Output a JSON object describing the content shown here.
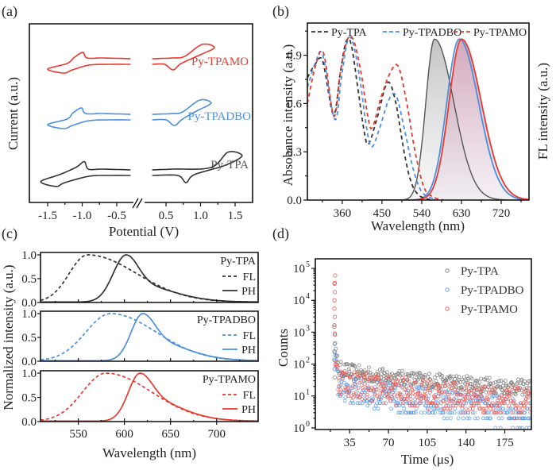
{
  "chart_data": [
    {
      "id": "a",
      "panel_label": "(a)",
      "type": "line",
      "title": "",
      "xlabel": "Potential (V)",
      "ylabel": "Current (a.u.)",
      "xlim": [
        -1.75,
        1.75
      ],
      "x_break": [
        -0.25,
        0.25
      ],
      "xticks": [
        -1.5,
        -1.0,
        -0.5,
        0.5,
        1.0,
        1.5
      ],
      "xtick_labels": [
        "-1.5",
        "-1.0",
        "-0.5",
        "0.5",
        "1.0",
        "1.5"
      ],
      "yticks": [],
      "grid": false,
      "series": [
        {
          "name": "Py-TPAMO",
          "color": "#e8392e",
          "offset": 2,
          "reduction": {
            "start": -1.5,
            "peak_c": -1.27,
            "peak_a": -0.99
          },
          "oxidation": {
            "peak_a": 1.02,
            "vertex": 1.2,
            "peak_c": 0.6
          }
        },
        {
          "name": "Py-TPADBO",
          "color": "#4a8fe0",
          "offset": 1,
          "reduction": {
            "start": -1.5,
            "peak_c": -1.27,
            "peak_a": -1.01
          },
          "oxidation": {
            "peak_a": 0.99,
            "vertex": 1.15,
            "peak_c": 0.62
          }
        },
        {
          "name": "Py-TPA",
          "color": "#333333",
          "offset": 0,
          "reduction": {
            "start": -1.6,
            "peak_c": -1.38,
            "peak_a": -0.97
          },
          "oxidation": {
            "peak_a": 1.4,
            "vertex": 1.6,
            "peak_c": 0.79
          }
        }
      ]
    },
    {
      "id": "b",
      "panel_label": "(b)",
      "type": "line",
      "title": "",
      "xlabel": "Wavelength (nm)",
      "ylabel": "Absobance intensity (a.u.)",
      "ylabel_right": "FL intensity (a.u.)",
      "xlim": [
        281,
        783
      ],
      "ylim": [
        0,
        1.1
      ],
      "xticks": [
        360,
        450,
        540,
        630,
        720
      ],
      "yticks": [
        0.0,
        0.3,
        0.6,
        0.9
      ],
      "ytick_labels": [
        "0.0",
        "0.3",
        "0.6",
        "0.9"
      ],
      "legend": "top",
      "grid": false,
      "absorbance": [
        {
          "name": "Py-TPA",
          "color": "#333333",
          "x": [
            281,
            300,
            316,
            340,
            355,
            368,
            380,
            395,
            410,
            420,
            440,
            462,
            480,
            500,
            515,
            530,
            548,
            570
          ],
          "y": [
            0.76,
            0.85,
            0.86,
            0.53,
            0.78,
            0.98,
            0.97,
            0.7,
            0.42,
            0.35,
            0.52,
            0.73,
            0.62,
            0.3,
            0.12,
            0.04,
            0.01,
            0.0
          ]
        },
        {
          "name": "Py-TPADBO",
          "color": "#4a8fe0",
          "x": [
            281,
            300,
            316,
            343,
            358,
            372,
            384,
            400,
            415,
            427,
            445,
            465,
            482,
            500,
            520,
            538,
            556,
            575
          ],
          "y": [
            0.7,
            0.86,
            0.9,
            0.5,
            0.76,
            0.99,
            0.98,
            0.75,
            0.45,
            0.33,
            0.45,
            0.62,
            0.65,
            0.45,
            0.2,
            0.06,
            0.02,
            0.0
          ]
        },
        {
          "name": "Py-TPAMO",
          "color": "#e8392e",
          "x": [
            281,
            300,
            318,
            341,
            356,
            372,
            386,
            402,
            418,
            428,
            448,
            470,
            487,
            505,
            525,
            545,
            565,
            590
          ],
          "y": [
            0.6,
            0.84,
            0.91,
            0.52,
            0.8,
            1.0,
            0.99,
            0.8,
            0.52,
            0.45,
            0.64,
            0.8,
            0.83,
            0.62,
            0.3,
            0.08,
            0.02,
            0.0
          ]
        }
      ],
      "fluorescence": [
        {
          "name": "Py-TPA",
          "color": "#555555",
          "fill": "#c9c9c9",
          "peak_nm": 569,
          "width_left": 28,
          "width_right": 62,
          "start_nm": 490
        },
        {
          "name": "Py-TPADBO",
          "color": "#4a8fe0",
          "fill": "#c9a9b9",
          "peak_nm": 625,
          "width_left": 40,
          "width_right": 62,
          "start_nm": 430
        },
        {
          "name": "Py-TPAMO",
          "color": "#e8392e",
          "fill": "#c9a9b9",
          "peak_nm": 630,
          "width_left": 40,
          "width_right": 64,
          "start_nm": 430
        }
      ]
    },
    {
      "id": "c",
      "panel_label": "(c)",
      "type": "line",
      "title": "",
      "xlabel": "Wavelength (nm)",
      "ylabel": "Normalized intensity (a.u.)",
      "xlim": [
        509,
        745
      ],
      "ylim": [
        0,
        1.05
      ],
      "xticks": [
        550,
        600,
        650,
        700
      ],
      "yticks": [
        0.0,
        0.5,
        1.0
      ],
      "ytick_labels": [
        "0.0",
        "0.5",
        "1.0"
      ],
      "subplots": [
        {
          "name": "Py-TPA",
          "color": "#333333",
          "fl_peak": 560,
          "fl_wl": 28,
          "fl_wr": 75,
          "ph_peak": 602,
          "ph_wl": 20,
          "ph_wr": 62,
          "ph_shoulder": 0.42,
          "legend": {
            "title": "Py-TPA",
            "fl": "FL",
            "ph": "PH"
          }
        },
        {
          "name": "Py-TPADBO",
          "color": "#4a8fe0",
          "fl_peak": 585,
          "fl_wl": 38,
          "fl_wr": 70,
          "ph_peak": 620,
          "ph_wl": 18,
          "ph_wr": 58,
          "ph_shoulder": 0.48,
          "legend": {
            "title": "Py-TPADBO",
            "fl": "FL",
            "ph": "PH"
          }
        },
        {
          "name": "Py-TPAMO",
          "color": "#e8392e",
          "fl_peak": 580,
          "fl_wl": 36,
          "fl_wr": 70,
          "ph_peak": 617,
          "ph_wl": 18,
          "ph_wr": 55,
          "ph_shoulder": 0.52,
          "legend": {
            "title": "Py-TPAMO",
            "fl": "FL",
            "ph": "PH"
          }
        }
      ]
    },
    {
      "id": "d",
      "panel_label": "(d)",
      "type": "scatter",
      "title": "",
      "xlabel": "Time (μs)",
      "ylabel": "Counts",
      "xscale": "linear",
      "yscale": "log",
      "xlim": [
        4,
        199
      ],
      "ylim_log10": [
        -0.05,
        5.3
      ],
      "xticks": [
        35,
        70,
        105,
        140,
        175
      ],
      "yticks_log10": [
        0,
        1,
        2,
        3,
        4,
        5
      ],
      "ytick_labels": [
        "10",
        "10",
        "10",
        "10",
        "10",
        "10"
      ],
      "ytick_exponents": [
        "0",
        "1",
        "2",
        "3",
        "4",
        "5"
      ],
      "legend": "top-right",
      "series": [
        {
          "name": "Py-TPA",
          "color": "#7a7a7a",
          "t0": 21.5,
          "peak": 1500,
          "tail_start": 85,
          "tail_end": 18,
          "noise": 0.25,
          "floor": 5
        },
        {
          "name": "Py-TPADBO",
          "color": "#5a9ae8",
          "t0": 21.5,
          "peak": 420,
          "tail_start": 28,
          "tail_end": 3,
          "noise": 0.45,
          "floor": 1
        },
        {
          "name": "Py-TPAMO",
          "color": "#f05a50",
          "t0": 21.5,
          "peak": 60000,
          "peak2": 35000,
          "tail_start": 40,
          "tail_end": 6,
          "noise": 0.45,
          "floor": 1
        }
      ]
    }
  ]
}
